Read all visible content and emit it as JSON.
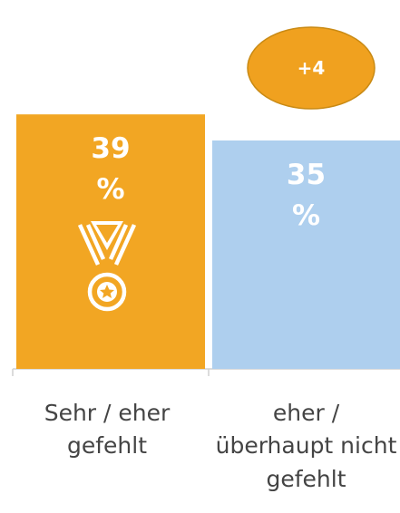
{
  "chart_data": {
    "type": "bar",
    "categories": [
      "Sehr / eher gefehlt",
      "eher / überhaupt nicht gefehlt"
    ],
    "values": [
      39,
      35
    ],
    "value_labels": [
      "39 %",
      "35 %"
    ],
    "colors": [
      "#f2a623",
      "#aecfee"
    ],
    "ylim": [
      0,
      40
    ],
    "annotations": [
      {
        "text": "+4"
      }
    ]
  }
}
